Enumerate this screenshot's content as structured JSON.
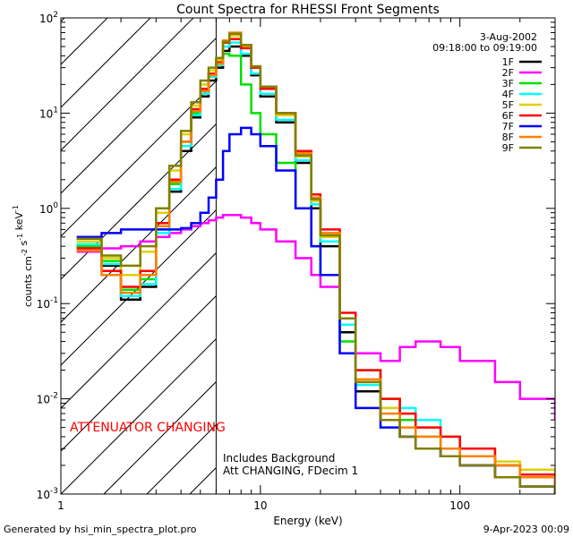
{
  "chart_data": {
    "type": "line",
    "title": "Count Spectra for RHESSI Front Segments",
    "xlabel": "Energy (keV)",
    "ylabel": "counts cm^-2 s^-1 keV^-1",
    "xscale": "log",
    "yscale": "log",
    "xlim": [
      1,
      300
    ],
    "ylim": [
      0.001,
      100
    ],
    "x_ticks": [
      {
        "value": 1,
        "label": "1"
      },
      {
        "value": 10,
        "label": "10"
      },
      {
        "value": 100,
        "label": "100"
      }
    ],
    "y_ticks": [
      {
        "value": 0.001,
        "base": "10",
        "exp": "-3"
      },
      {
        "value": 0.01,
        "base": "10",
        "exp": "-2"
      },
      {
        "value": 0.1,
        "base": "10",
        "exp": "-1"
      },
      {
        "value": 1,
        "base": "10",
        "exp": "0"
      },
      {
        "value": 10,
        "base": "10",
        "exp": "1"
      },
      {
        "value": 100,
        "base": "10",
        "exp": "2"
      }
    ],
    "date": "3-Aug-2002",
    "time_range": "09:18:00 to 09:19:00",
    "threshold_energy": 6,
    "annotations": {
      "attenuator": "ATTENUATOR CHANGING",
      "background": "Includes Background",
      "att_state": "Att CHANGING, FDecim 1"
    },
    "series": [
      {
        "name": "1F",
        "color": "#000000",
        "x": [
          1.2,
          1.6,
          2.0,
          2.5,
          3.0,
          3.5,
          4.0,
          4.5,
          5.0,
          5.5,
          6.0,
          6.5,
          7.0,
          8.0,
          9.0,
          10.0,
          12.0,
          15.0,
          18.0,
          20.0,
          25.0,
          30.0,
          40.0,
          50.0,
          60.0,
          80.0,
          100.0,
          150.0,
          200.0,
          300.0
        ],
        "y": [
          0.4,
          0.25,
          0.11,
          0.15,
          0.5,
          1.5,
          4.0,
          9.0,
          15.0,
          22.0,
          30.0,
          45.0,
          50.0,
          40.0,
          25.0,
          15.0,
          8.0,
          3.0,
          1.0,
          0.4,
          0.05,
          0.012,
          0.006,
          0.004,
          0.003,
          0.0025,
          0.002,
          0.0015,
          0.0012,
          0.001
        ]
      },
      {
        "name": "2F",
        "color": "#ff00ff",
        "x": [
          1.2,
          1.6,
          2.0,
          2.5,
          3.0,
          3.5,
          4.0,
          4.5,
          5.0,
          5.5,
          6.0,
          6.5,
          7.0,
          8.0,
          9.0,
          10.0,
          12.0,
          15.0,
          18.0,
          20.0,
          25.0,
          30.0,
          40.0,
          50.0,
          60.0,
          80.0,
          100.0,
          150.0,
          200.0,
          300.0
        ],
        "y": [
          0.35,
          0.38,
          0.4,
          0.45,
          0.5,
          0.55,
          0.6,
          0.65,
          0.7,
          0.75,
          0.8,
          0.85,
          0.85,
          0.8,
          0.7,
          0.6,
          0.45,
          0.3,
          0.2,
          0.15,
          0.07,
          0.03,
          0.025,
          0.035,
          0.04,
          0.035,
          0.025,
          0.015,
          0.01,
          0.006
        ]
      },
      {
        "name": "3F",
        "color": "#00e000",
        "x": [
          1.2,
          1.6,
          2.0,
          2.5,
          3.0,
          3.5,
          4.0,
          4.5,
          5.0,
          5.5,
          6.0,
          6.5,
          7.0,
          8.0,
          9.0,
          10.0,
          12.0,
          15.0,
          18.0,
          20.0,
          25.0,
          30.0,
          40.0,
          50.0,
          60.0,
          80.0,
          100.0,
          150.0,
          200.0,
          300.0
        ],
        "y": [
          0.4,
          0.28,
          0.14,
          0.18,
          0.6,
          1.8,
          5.0,
          10.0,
          18.0,
          26.0,
          35.0,
          42.0,
          40.0,
          20.0,
          10.0,
          6.0,
          3.0,
          1.0,
          0.4,
          0.2,
          0.04,
          0.02,
          0.01,
          0.006,
          0.004,
          0.003,
          0.0025,
          0.002,
          0.0015,
          0.0012
        ]
      },
      {
        "name": "4F",
        "color": "#00ffff",
        "x": [
          1.2,
          1.6,
          2.0,
          2.5,
          3.0,
          3.5,
          4.0,
          4.5,
          5.0,
          5.5,
          6.0,
          6.5,
          7.0,
          8.0,
          9.0,
          10.0,
          12.0,
          15.0,
          18.0,
          20.0,
          25.0,
          30.0,
          40.0,
          50.0,
          60.0,
          80.0,
          100.0,
          150.0,
          200.0,
          300.0
        ],
        "y": [
          0.42,
          0.26,
          0.12,
          0.16,
          0.55,
          1.6,
          4.5,
          9.5,
          16.0,
          24.0,
          32.0,
          50.0,
          55.0,
          42.0,
          26.0,
          16.0,
          8.5,
          3.2,
          1.1,
          0.45,
          0.06,
          0.014,
          0.008,
          0.008,
          0.006,
          0.004,
          0.003,
          0.002,
          0.0016,
          0.0012
        ]
      },
      {
        "name": "5F",
        "color": "#e0d000",
        "x": [
          1.2,
          1.6,
          2.0,
          2.5,
          3.0,
          3.5,
          4.0,
          4.5,
          5.0,
          5.5,
          6.0,
          6.5,
          7.0,
          8.0,
          9.0,
          10.0,
          12.0,
          15.0,
          18.0,
          20.0,
          25.0,
          30.0,
          40.0,
          50.0,
          60.0,
          80.0,
          100.0,
          150.0,
          200.0,
          300.0
        ],
        "y": [
          0.45,
          0.3,
          0.2,
          0.35,
          0.9,
          2.5,
          6.0,
          12.0,
          20.0,
          28.0,
          36.0,
          55.0,
          65.0,
          50.0,
          30.0,
          18.0,
          9.5,
          3.5,
          1.2,
          0.5,
          0.07,
          0.015,
          0.008,
          0.007,
          0.005,
          0.004,
          0.003,
          0.0022,
          0.0018,
          0.0013
        ]
      },
      {
        "name": "6F",
        "color": "#ff0000",
        "x": [
          1.2,
          1.6,
          2.0,
          2.5,
          3.0,
          3.5,
          4.0,
          4.5,
          5.0,
          5.5,
          6.0,
          6.5,
          7.0,
          8.0,
          9.0,
          10.0,
          12.0,
          15.0,
          18.0,
          20.0,
          25.0,
          30.0,
          40.0,
          50.0,
          60.0,
          80.0,
          100.0,
          150.0,
          200.0,
          300.0
        ],
        "y": [
          0.38,
          0.22,
          0.15,
          0.22,
          0.7,
          2.0,
          5.0,
          11.0,
          18.0,
          26.0,
          34.0,
          55.0,
          60.0,
          48.0,
          30.0,
          18.0,
          10.0,
          4.0,
          1.4,
          0.6,
          0.08,
          0.02,
          0.01,
          0.007,
          0.005,
          0.004,
          0.003,
          0.002,
          0.0016,
          0.0012
        ]
      },
      {
        "name": "7F",
        "color": "#0000ff",
        "x": [
          1.2,
          1.6,
          2.0,
          2.5,
          3.0,
          3.5,
          4.0,
          4.5,
          5.0,
          5.5,
          6.0,
          6.5,
          7.0,
          8.0,
          9.0,
          10.0,
          12.0,
          15.0,
          18.0,
          20.0,
          25.0,
          30.0,
          40.0,
          50.0,
          60.0,
          80.0,
          100.0,
          150.0,
          200.0,
          300.0
        ],
        "y": [
          0.5,
          0.55,
          0.6,
          0.6,
          0.6,
          0.6,
          0.62,
          0.7,
          0.9,
          1.3,
          2.0,
          4.0,
          6.0,
          7.0,
          6.0,
          4.5,
          2.5,
          1.0,
          0.4,
          0.2,
          0.03,
          0.008,
          0.005,
          0.004,
          0.003,
          0.0025,
          0.002,
          0.0015,
          0.0012,
          0.001
        ]
      },
      {
        "name": "8F",
        "color": "#ff8000",
        "x": [
          1.2,
          1.6,
          2.0,
          2.5,
          3.0,
          3.5,
          4.0,
          4.5,
          5.0,
          5.5,
          6.0,
          6.5,
          7.0,
          8.0,
          9.0,
          10.0,
          12.0,
          15.0,
          18.0,
          20.0,
          25.0,
          30.0,
          40.0,
          50.0,
          60.0,
          80.0,
          100.0,
          150.0,
          200.0,
          300.0
        ],
        "y": [
          0.36,
          0.2,
          0.13,
          0.2,
          0.65,
          1.9,
          5.0,
          10.5,
          17.0,
          25.0,
          33.0,
          58.0,
          70.0,
          52.0,
          31.0,
          19.0,
          10.0,
          3.8,
          1.3,
          0.55,
          0.07,
          0.016,
          0.007,
          0.005,
          0.004,
          0.003,
          0.0025,
          0.002,
          0.0015,
          0.0011
        ]
      },
      {
        "name": "9F",
        "color": "#808000",
        "x": [
          1.2,
          1.6,
          2.0,
          2.5,
          3.0,
          3.5,
          4.0,
          4.5,
          5.0,
          5.5,
          6.0,
          6.5,
          7.0,
          8.0,
          9.0,
          10.0,
          12.0,
          15.0,
          18.0,
          20.0,
          25.0,
          30.0,
          40.0,
          50.0,
          60.0,
          80.0,
          100.0,
          150.0,
          200.0,
          300.0
        ],
        "y": [
          0.48,
          0.32,
          0.25,
          0.4,
          1.0,
          2.8,
          6.5,
          13.0,
          22.0,
          30.0,
          38.0,
          56.0,
          68.0,
          52.0,
          31.0,
          19.0,
          10.0,
          3.6,
          1.25,
          0.52,
          0.07,
          0.015,
          0.006,
          0.004,
          0.003,
          0.0025,
          0.002,
          0.0015,
          0.0012,
          0.001
        ]
      }
    ]
  },
  "footer": {
    "generated_by": "Generated by hsi_min_spectra_plot.pro",
    "timestamp": "9-Apr-2023 00:09"
  }
}
